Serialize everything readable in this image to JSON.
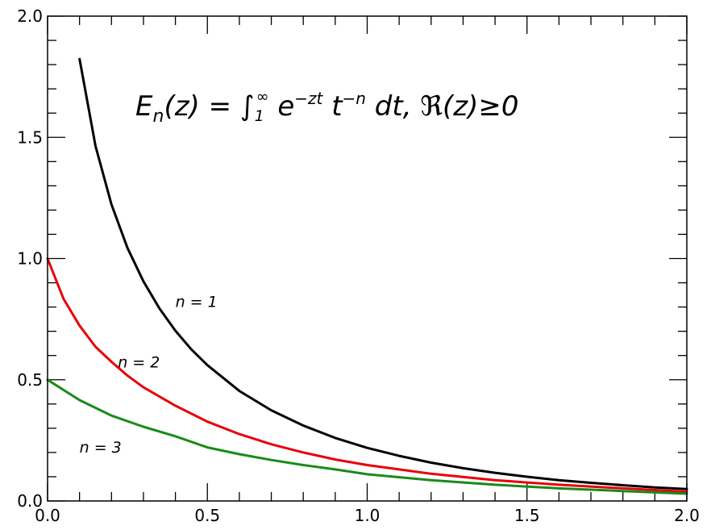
{
  "chart_data": {
    "type": "line",
    "title": {
      "E": "E",
      "sub_n": "n",
      "arg_open": "(z) = ",
      "integral": "∫",
      "sub_1": "1",
      "sup_inf": "∞",
      "e": " e",
      "sup_zt": "−zt",
      "t": " t",
      "sup_n": "−n",
      "tail": " dt, ℜ(z)≥0"
    },
    "xlim": [
      0.0,
      2.0
    ],
    "ylim": [
      0.0,
      2.0
    ],
    "x_ticks": [
      "0.0",
      "0.5",
      "1.0",
      "1.5",
      "2.0"
    ],
    "y_ticks": [
      "0.0",
      "0.5",
      "1.0",
      "1.5",
      "2.0"
    ],
    "grid": false,
    "series": [
      {
        "name": "n = 1",
        "color": "#000000",
        "x": [
          0.1,
          0.15,
          0.2,
          0.25,
          0.3,
          0.35,
          0.4,
          0.45,
          0.5,
          0.6,
          0.7,
          0.8,
          0.9,
          1.0,
          1.1,
          1.2,
          1.3,
          1.4,
          1.5,
          1.6,
          1.7,
          1.8,
          1.9,
          2.0
        ],
        "y": [
          1.823,
          1.464,
          1.223,
          1.044,
          0.906,
          0.794,
          0.702,
          0.625,
          0.56,
          0.454,
          0.374,
          0.311,
          0.26,
          0.219,
          0.186,
          0.158,
          0.135,
          0.116,
          0.1,
          0.086,
          0.075,
          0.065,
          0.056,
          0.049
        ]
      },
      {
        "name": "n = 2",
        "color": "#e8000b",
        "x": [
          0.0,
          0.05,
          0.1,
          0.15,
          0.2,
          0.25,
          0.3,
          0.4,
          0.5,
          0.6,
          0.7,
          0.8,
          0.9,
          1.0,
          1.2,
          1.4,
          1.6,
          1.8,
          2.0
        ],
        "y": [
          1.0,
          0.834,
          0.723,
          0.636,
          0.574,
          0.517,
          0.469,
          0.393,
          0.327,
          0.276,
          0.234,
          0.2,
          0.171,
          0.148,
          0.112,
          0.086,
          0.067,
          0.052,
          0.038
        ]
      },
      {
        "name": "n = 3",
        "color": "#1a8a1a",
        "x": [
          0.0,
          0.1,
          0.2,
          0.3,
          0.4,
          0.5,
          0.6,
          0.7,
          0.8,
          0.9,
          1.0,
          1.2,
          1.4,
          1.6,
          1.8,
          2.0
        ],
        "y": [
          0.5,
          0.416,
          0.352,
          0.306,
          0.267,
          0.221,
          0.193,
          0.169,
          0.148,
          0.13,
          0.11,
          0.086,
          0.067,
          0.052,
          0.041,
          0.03
        ]
      }
    ],
    "labels": [
      {
        "text": "n = 1",
        "x": 0.4,
        "y": 0.8
      },
      {
        "text": "n = 2",
        "x": 0.22,
        "y": 0.55
      },
      {
        "text": "n = 3",
        "x": 0.1,
        "y": 0.2
      }
    ]
  }
}
